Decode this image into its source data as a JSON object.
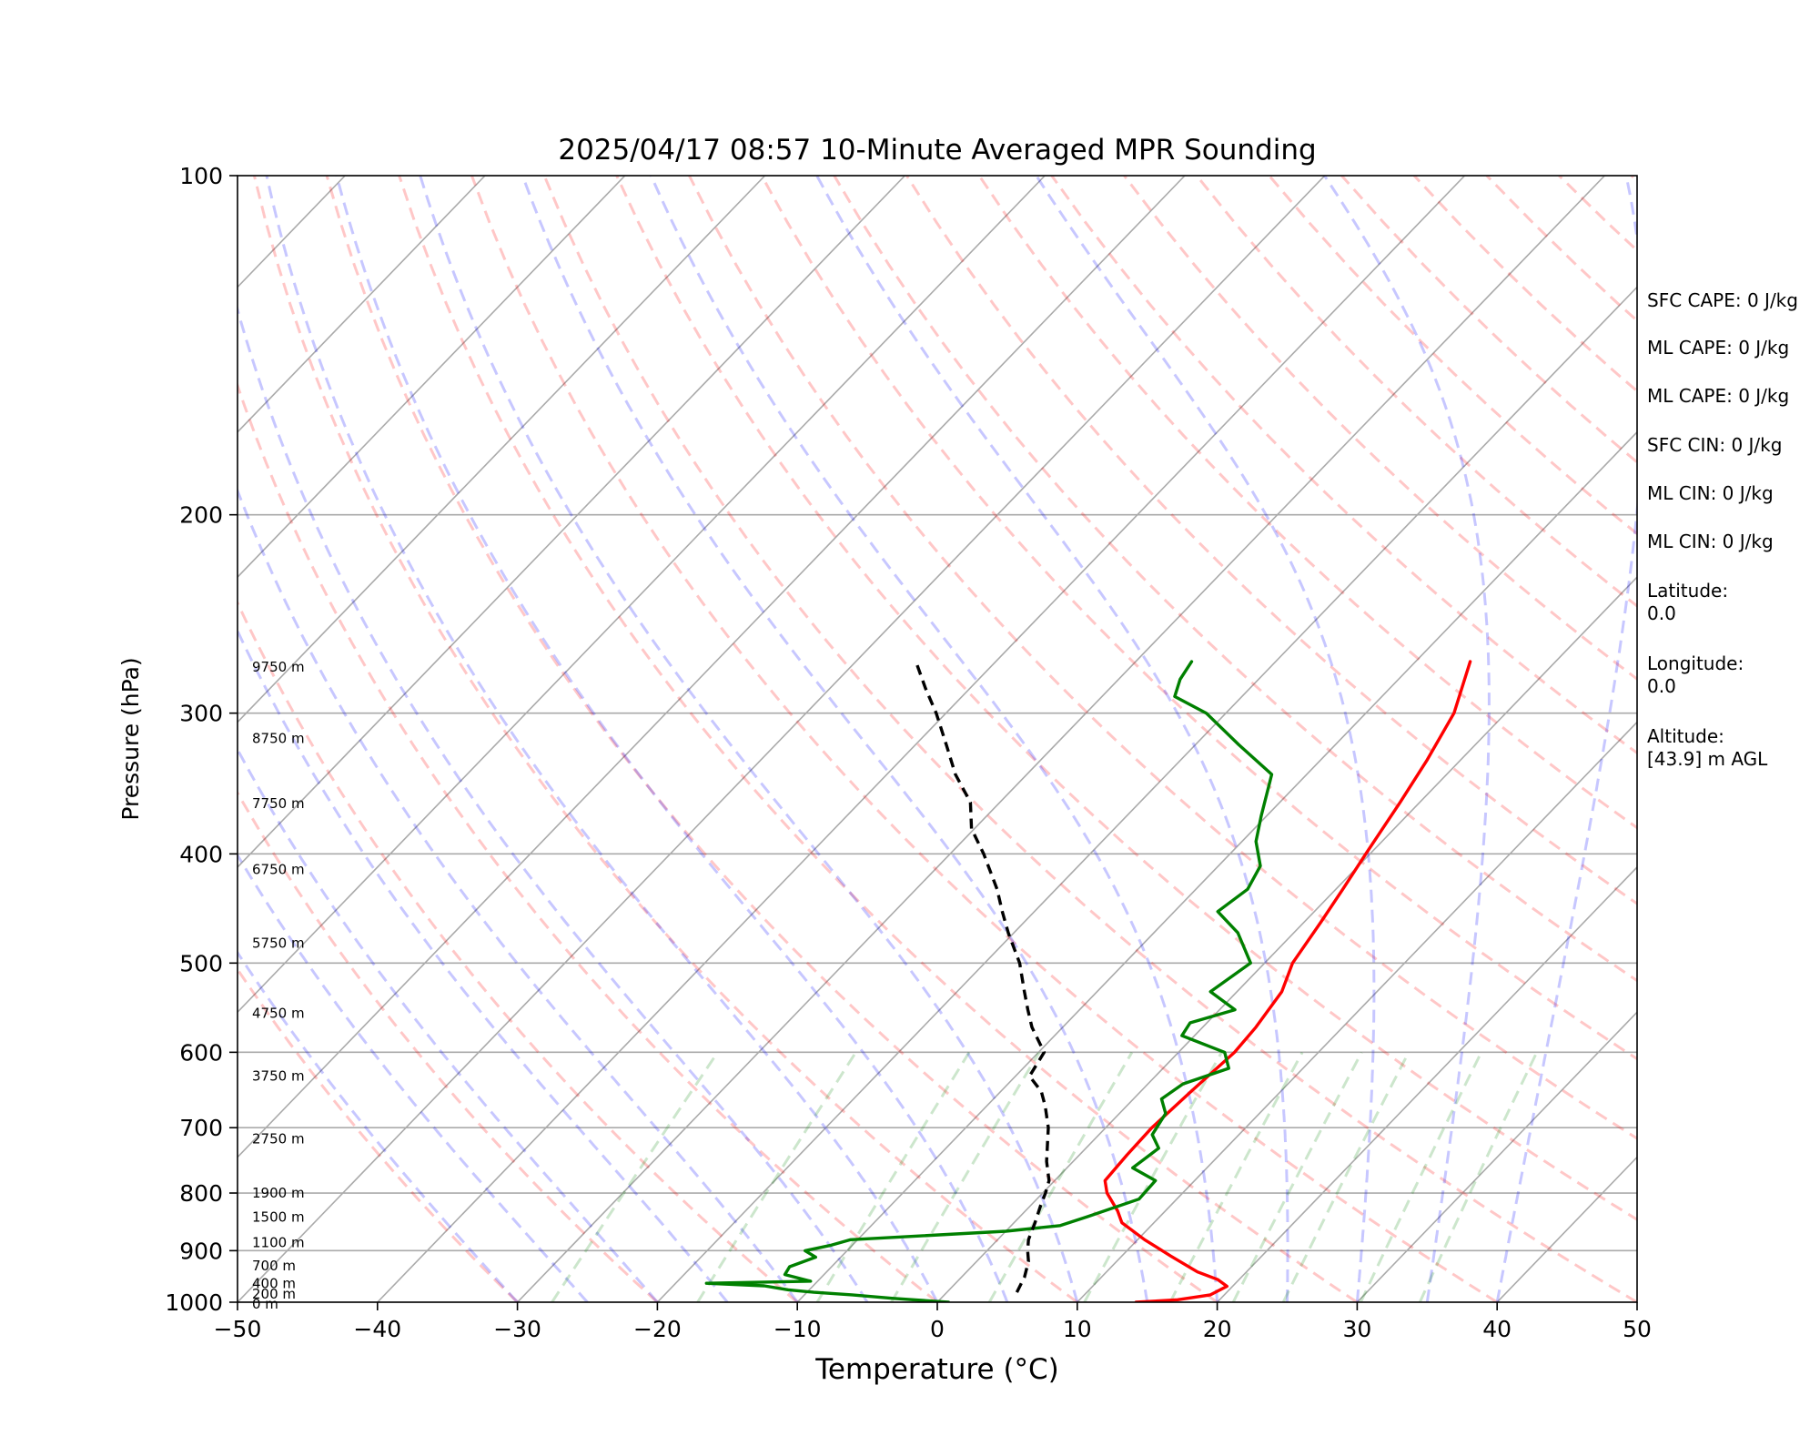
{
  "chart_data": {
    "type": "line",
    "title": "2025/04/17 08:57 10-Minute Averaged MPR Sounding",
    "xlabel": "Temperature (°C)",
    "ylabel": "Pressure (hPa)",
    "xlim": [
      -50,
      50
    ],
    "ylim": [
      1000,
      100
    ],
    "y_scale": "log",
    "x_ticks": [
      "−50",
      "−40",
      "−30",
      "−20",
      "−10",
      "0",
      "10",
      "20",
      "30",
      "40",
      "50"
    ],
    "y_ticks": [
      {
        "p": 100,
        "label": "100"
      },
      {
        "p": 200,
        "label": "200"
      },
      {
        "p": 300,
        "label": "300"
      },
      {
        "p": 400,
        "label": "400"
      },
      {
        "p": 500,
        "label": "500"
      },
      {
        "p": 600,
        "label": "600"
      },
      {
        "p": 700,
        "label": "700"
      },
      {
        "p": 800,
        "label": "800"
      },
      {
        "p": 900,
        "label": "900"
      },
      {
        "p": 1000,
        "label": "1000"
      }
    ],
    "grid": true,
    "background_lines": {
      "dry_adiabats": "dashed, light red",
      "moist_adiabats": "dashed, light blue",
      "mixing_ratio_lines": "dashed, light green",
      "isotherms": "solid gray, skewed"
    },
    "series": [
      {
        "role": "temperature",
        "color": "#ff0000",
        "points": [
          [
            1000,
            14.2
          ],
          [
            995,
            17.0
          ],
          [
            985,
            19.0
          ],
          [
            968,
            19.6
          ],
          [
            955,
            18.5
          ],
          [
            940,
            16.5
          ],
          [
            910,
            13.5
          ],
          [
            880,
            10.5
          ],
          [
            850,
            7.7
          ],
          [
            830,
            6.6
          ],
          [
            800,
            4.6
          ],
          [
            780,
            3.6
          ],
          [
            740,
            3.4
          ],
          [
            700,
            3.3
          ],
          [
            650,
            3.6
          ],
          [
            600,
            4.0
          ],
          [
            570,
            3.8
          ],
          [
            530,
            3.2
          ],
          [
            500,
            2.0
          ],
          [
            460,
            1.2
          ],
          [
            430,
            0.5
          ],
          [
            400,
            -0.3
          ],
          [
            360,
            -1.4
          ],
          [
            330,
            -2.4
          ],
          [
            300,
            -3.7
          ],
          [
            270,
            -6.1
          ]
        ]
      },
      {
        "role": "dewpoint",
        "color": "#008000",
        "points": [
          [
            1000,
            0.8
          ],
          [
            992,
            -3.5
          ],
          [
            985,
            -6.6
          ],
          [
            980,
            -9.5
          ],
          [
            975,
            -11.5
          ],
          [
            967,
            -13.5
          ],
          [
            962,
            -17.8
          ],
          [
            958,
            -10.5
          ],
          [
            945,
            -12.8
          ],
          [
            930,
            -13.0
          ],
          [
            912,
            -11.8
          ],
          [
            900,
            -13.0
          ],
          [
            890,
            -11.5
          ],
          [
            880,
            -10.5
          ],
          [
            865,
            0.0
          ],
          [
            855,
            3.5
          ],
          [
            840,
            4.8
          ],
          [
            810,
            7.3
          ],
          [
            780,
            7.2
          ],
          [
            760,
            4.7
          ],
          [
            730,
            5.2
          ],
          [
            710,
            3.8
          ],
          [
            680,
            3.3
          ],
          [
            660,
            2.0
          ],
          [
            640,
            2.5
          ],
          [
            620,
            4.7
          ],
          [
            600,
            3.3
          ],
          [
            580,
            -0.9
          ],
          [
            565,
            -1.2
          ],
          [
            550,
            1.1
          ],
          [
            530,
            -1.9
          ],
          [
            500,
            -1.0
          ],
          [
            470,
            -4.0
          ],
          [
            450,
            -6.9
          ],
          [
            430,
            -6.3
          ],
          [
            410,
            -7.0
          ],
          [
            390,
            -9.0
          ],
          [
            370,
            -10.4
          ],
          [
            340,
            -12.5
          ],
          [
            320,
            -16.9
          ],
          [
            300,
            -21.4
          ],
          [
            290,
            -24.8
          ],
          [
            280,
            -25.6
          ],
          [
            270,
            -26.0
          ]
        ]
      },
      {
        "role": "parcel",
        "color": "#000000",
        "style": "dashed",
        "points": [
          [
            980,
            5.0
          ],
          [
            950,
            4.5
          ],
          [
            920,
            3.7
          ],
          [
            900,
            2.9
          ],
          [
            880,
            2.2
          ],
          [
            850,
            1.5
          ],
          [
            820,
            0.7
          ],
          [
            800,
            0.2
          ],
          [
            780,
            -0.4
          ],
          [
            750,
            -1.9
          ],
          [
            720,
            -3.2
          ],
          [
            700,
            -4.1
          ],
          [
            670,
            -5.8
          ],
          [
            650,
            -7.1
          ],
          [
            630,
            -9.0
          ],
          [
            600,
            -9.6
          ],
          [
            570,
            -12.2
          ],
          [
            550,
            -13.7
          ],
          [
            530,
            -15.2
          ],
          [
            500,
            -17.5
          ],
          [
            470,
            -20.4
          ],
          [
            450,
            -22.3
          ],
          [
            430,
            -24.2
          ],
          [
            400,
            -27.6
          ],
          [
            380,
            -30.2
          ],
          [
            360,
            -32.1
          ],
          [
            340,
            -35.1
          ],
          [
            320,
            -37.8
          ],
          [
            300,
            -40.7
          ],
          [
            285,
            -43.2
          ],
          [
            270,
            -45.7
          ]
        ]
      }
    ],
    "height_annotations": [
      {
        "p": 273,
        "label": "9750 m"
      },
      {
        "p": 316,
        "label": "8750 m"
      },
      {
        "p": 361,
        "label": "7750 m"
      },
      {
        "p": 413,
        "label": "6750 m"
      },
      {
        "p": 480,
        "label": "5750 m"
      },
      {
        "p": 554,
        "label": "4750 m"
      },
      {
        "p": 630,
        "label": "3750 m"
      },
      {
        "p": 716,
        "label": "2750 m"
      },
      {
        "p": 800,
        "label": "1900 m"
      },
      {
        "p": 840,
        "label": "1500 m"
      },
      {
        "p": 885,
        "label": "1100 m"
      },
      {
        "p": 928,
        "label": "700 m"
      },
      {
        "p": 963,
        "label": "400 m"
      },
      {
        "p": 983,
        "label": "200 m"
      },
      {
        "p": 1004,
        "label": "0 m"
      }
    ]
  },
  "stats_panel": {
    "sfc_cape": "SFC CAPE: 0 J/kg",
    "ml_cape_1": "ML CAPE: 0 J/kg",
    "ml_cape_2": "ML CAPE: 0 J/kg",
    "sfc_cin": "SFC CIN: 0 J/kg",
    "ml_cin_1": "ML CIN: 0 J/kg",
    "ml_cin_2": "ML CIN: 0 J/kg",
    "latitude_label": "Latitude:",
    "latitude_value": "0.0",
    "longitude_label": "Longitude:",
    "longitude_value": "0.0",
    "altitude_label": "Altitude:",
    "altitude_value": "[43.9] m AGL"
  }
}
